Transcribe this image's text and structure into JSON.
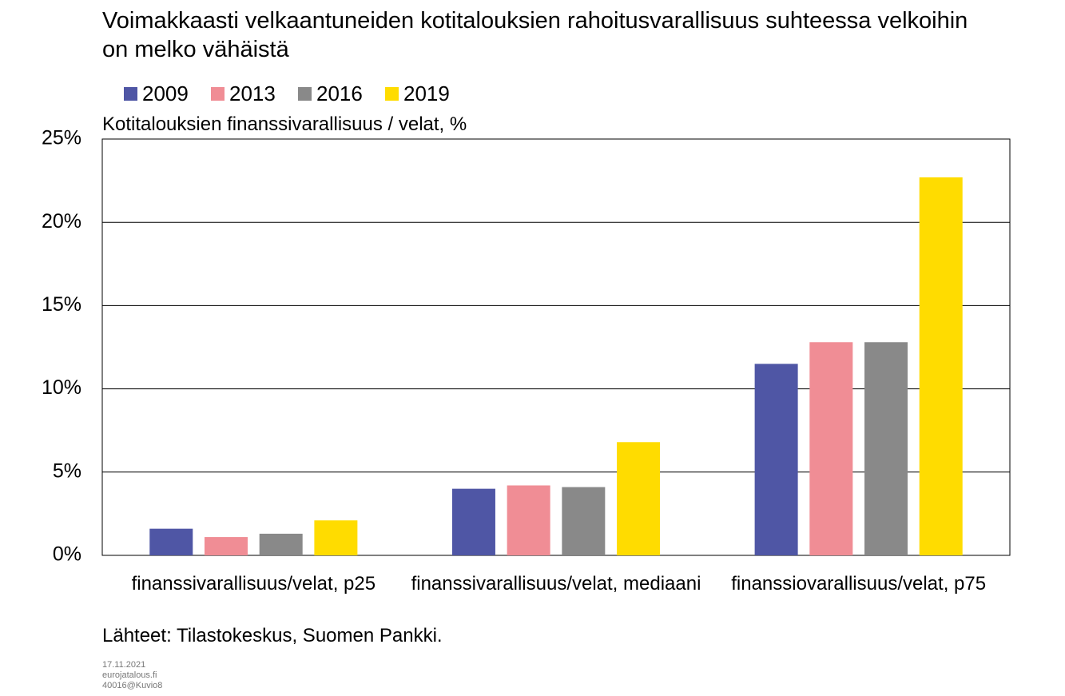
{
  "title": "Voimakkaasti velkaantuneiden kotitalouksien rahoitusvarallisuus suhteessa velkoihin on melko vähäistä",
  "source": "Lähteet: Tilastokeskus, Suomen Pankki.",
  "footer": [
    "17.11.2021",
    "eurojatalous.fi",
    "40016@Kuvio8"
  ],
  "chart_data": {
    "type": "bar",
    "y_label": "Kotitalouksien finanssivarallisuus / velat, %",
    "categories": [
      "finanssivarallisuus/velat, p25",
      "finanssivarallisuus/velat, mediaani",
      "finanssiovarallisuus/velat, p75"
    ],
    "series": [
      {
        "name": "2009",
        "color": "#4f56a5",
        "values": [
          1.6,
          4.0,
          11.5
        ]
      },
      {
        "name": "2013",
        "color": "#f08d95",
        "values": [
          1.1,
          4.2,
          12.8
        ]
      },
      {
        "name": "2016",
        "color": "#898989",
        "values": [
          1.3,
          4.1,
          12.8
        ]
      },
      {
        "name": "2019",
        "color": "#ffdc00",
        "values": [
          2.1,
          6.8,
          22.7
        ]
      }
    ],
    "ylim": [
      0,
      25
    ],
    "yticks": [
      {
        "value": 0,
        "label": "0%"
      },
      {
        "value": 5,
        "label": "5%"
      },
      {
        "value": 10,
        "label": "10%"
      },
      {
        "value": 15,
        "label": "15%"
      },
      {
        "value": 20,
        "label": "20%"
      },
      {
        "value": 25,
        "label": "25%"
      }
    ],
    "grid": true
  }
}
